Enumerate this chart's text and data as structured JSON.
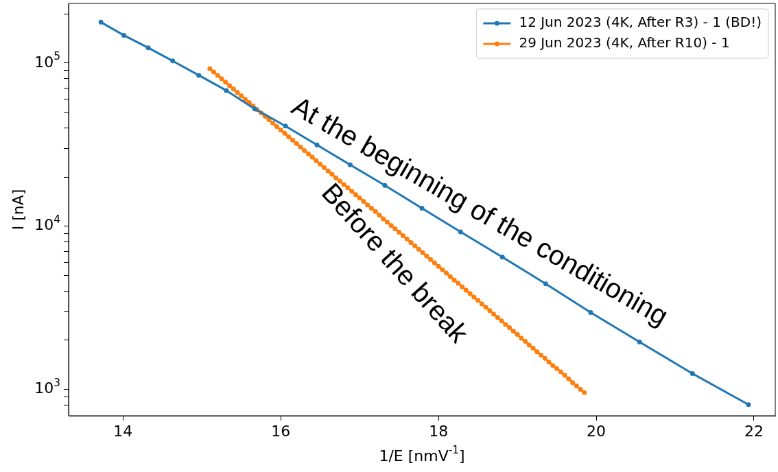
{
  "chart_data": {
    "type": "line",
    "xlabel": "1/E [nmV$^{-1}$]",
    "ylabel": "I [nA]",
    "log": "y",
    "marker": "circle",
    "line_style": "solid",
    "legend": "top right",
    "grid": false,
    "xlim": [
      13.31,
      22.27
    ],
    "xticks": [
      14,
      16,
      18,
      20,
      22
    ],
    "ylim": [
      689,
      232000
    ],
    "yticks": [
      {
        "value": 800,
        "label": null
      },
      {
        "value": 900,
        "label": null
      },
      {
        "value": 1000,
        "label": "10$^{3}$"
      },
      {
        "value": 2000,
        "label": null
      },
      {
        "value": 3000,
        "label": null
      },
      {
        "value": 4000,
        "label": null
      },
      {
        "value": 5000,
        "label": null
      },
      {
        "value": 6000,
        "label": null
      },
      {
        "value": 7000,
        "label": null
      },
      {
        "value": 8000,
        "label": null
      },
      {
        "value": 9000,
        "label": null
      },
      {
        "value": 10000,
        "label": "10$^{4}$"
      },
      {
        "value": 20000,
        "label": null
      },
      {
        "value": 30000,
        "label": null
      },
      {
        "value": 40000,
        "label": null
      },
      {
        "value": 50000,
        "label": null
      },
      {
        "value": 60000,
        "label": null
      },
      {
        "value": 70000,
        "label": null
      },
      {
        "value": 80000,
        "label": null
      },
      {
        "value": 90000,
        "label": null
      },
      {
        "value": 100000,
        "label": "10$^{5}$"
      },
      {
        "value": 200000,
        "label": null
      }
    ],
    "series": [
      {
        "name": "12 Jun 2023 (4K, After R3) - 1 (BD!)",
        "color": "#1f77b4",
        "x": [
          13.72,
          14.01,
          14.32,
          14.63,
          14.96,
          15.31,
          15.67,
          16.06,
          16.46,
          16.88,
          17.32,
          17.79,
          18.28,
          18.81,
          19.36,
          19.93,
          20.55,
          21.22,
          21.93
        ],
        "values": [
          178000,
          148000,
          124000,
          103000,
          84200,
          67900,
          52400,
          41100,
          31500,
          23800,
          17800,
          12900,
          9230,
          6470,
          4430,
          2960,
          1950,
          1250,
          806
        ]
      },
      {
        "name": "29 Jun 2023 (4K, After R10) - 1",
        "color": "#ff7f0e",
        "x": [
          15.1,
          15.15,
          15.2,
          15.25,
          15.3,
          15.35,
          15.4,
          15.45,
          15.5,
          15.55,
          15.6,
          15.65,
          15.7,
          15.75,
          15.8,
          15.85,
          15.9,
          15.95,
          16.0,
          16.05,
          16.1,
          16.15,
          16.2,
          16.25,
          16.3,
          16.35,
          16.4,
          16.45,
          16.5,
          16.55,
          16.6,
          16.65,
          16.7,
          16.75,
          16.8,
          16.85,
          16.9,
          16.95,
          17.0,
          17.05,
          17.1,
          17.15,
          17.2,
          17.25,
          17.3,
          17.35,
          17.4,
          17.45,
          17.5,
          17.55,
          17.6,
          17.65,
          17.7,
          17.75,
          17.8,
          17.85,
          17.9,
          17.95,
          18.0,
          18.05,
          18.1,
          18.15,
          18.2,
          18.25,
          18.3,
          18.35,
          18.4,
          18.45,
          18.5,
          18.55,
          18.6,
          18.65,
          18.7,
          18.75,
          18.8,
          18.85,
          18.9,
          18.95,
          19.0,
          19.05,
          19.1,
          19.15,
          19.2,
          19.25,
          19.3,
          19.35,
          19.4,
          19.45,
          19.5,
          19.55,
          19.6,
          19.65,
          19.7,
          19.75,
          19.8,
          19.85
        ],
        "values": [
          92500,
          88200,
          84000,
          80100,
          76300,
          72700,
          69300,
          66100,
          63000,
          60000,
          57200,
          54500,
          51900,
          49500,
          47200,
          44900,
          42800,
          40800,
          38900,
          37100,
          35300,
          33700,
          32100,
          30600,
          29100,
          27800,
          26500,
          25200,
          24000,
          22900,
          21800,
          20800,
          19800,
          18900,
          18000,
          17200,
          16400,
          15600,
          14900,
          14200,
          13500,
          12900,
          12300,
          11700,
          11100,
          10600,
          10100,
          9640,
          9190,
          8760,
          8350,
          7950,
          7580,
          7220,
          6880,
          6560,
          6250,
          5960,
          5680,
          5410,
          5160,
          4910,
          4680,
          4460,
          4250,
          4050,
          3860,
          3680,
          3510,
          3340,
          3190,
          3040,
          2890,
          2760,
          2630,
          2500,
          2390,
          2270,
          2170,
          2060,
          1970,
          1870,
          1790,
          1700,
          1620,
          1550,
          1470,
          1400,
          1340,
          1280,
          1220,
          1160,
          1100,
          1050,
          1000,
          955
        ]
      }
    ],
    "annotations": [
      "At the beginning of the conditioning",
      "Before the break"
    ]
  }
}
